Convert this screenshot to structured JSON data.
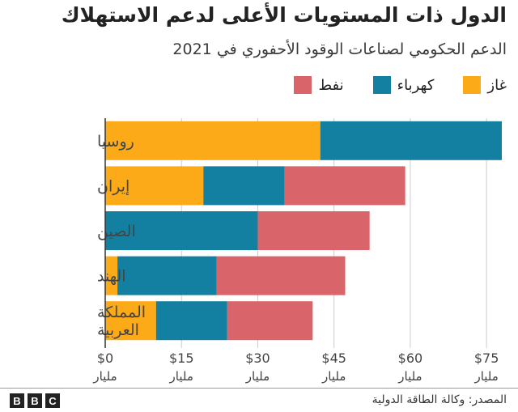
{
  "chart_data": {
    "type": "bar",
    "orientation": "horizontal",
    "stacked": true,
    "title": "الدول ذات المستويات الأعلى لدعم الاستهلاك",
    "subtitle": "الدعم الحكومي لصناعات الوقود الأحفوري في 2021",
    "categories": [
      [
        "روسيا"
      ],
      [
        "إيران"
      ],
      [
        "الصين"
      ],
      [
        "الهند"
      ],
      [
        "المملكة",
        "العربية"
      ]
    ],
    "series": [
      {
        "name": "غاز",
        "color": "#fcaa17",
        "values": [
          42.3,
          19.3,
          0,
          2.4,
          10.0
        ]
      },
      {
        "name": "كهرباء",
        "color": "#1380a1",
        "values": [
          35.7,
          16.0,
          30.0,
          19.5,
          14.0
        ]
      },
      {
        "name": "نفط",
        "color": "#d9656b",
        "values": [
          0,
          23.7,
          22.0,
          25.3,
          16.8
        ]
      }
    ],
    "xlim": [
      0,
      78
    ],
    "xticks": [
      {
        "value": 0,
        "label": "$0",
        "sub": "مليار"
      },
      {
        "value": 15,
        "label": "$15",
        "sub": "مليار"
      },
      {
        "value": 30,
        "label": "$30",
        "sub": "مليار"
      },
      {
        "value": 45,
        "label": "$45",
        "sub": "مليار"
      },
      {
        "value": 60,
        "label": "$60",
        "sub": "مليار"
      },
      {
        "value": 75,
        "label": "$75",
        "sub": "مليار"
      }
    ],
    "grid": true,
    "legend_position": "top-right"
  },
  "footer": {
    "source": "المصدر: وكالة الطاقة الدولية",
    "logo": [
      "B",
      "B",
      "C"
    ]
  }
}
